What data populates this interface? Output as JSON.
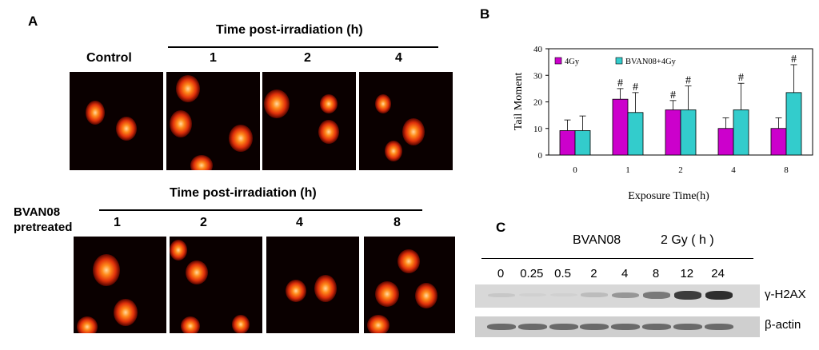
{
  "panelA": {
    "letter": "A",
    "top_header": "Time post-irradiation (h)",
    "top_row_labels": [
      "Control",
      "1",
      "2",
      "4"
    ],
    "bottom_header": "Time post-irradiation (h)",
    "pretreated_label_line1": "BVAN08",
    "pretreated_label_line2": "pretreated",
    "bottom_row_labels": [
      "1",
      "2",
      "4",
      "8"
    ]
  },
  "panelB": {
    "letter": "B",
    "chart_data": {
      "type": "bar",
      "categories": [
        "0",
        "1",
        "2",
        "4",
        "8"
      ],
      "series": [
        {
          "name": "4Gy",
          "color": "#cc00cc",
          "values": [
            9.2,
            21.0,
            17.0,
            10.0,
            10.0
          ],
          "errors": [
            4.0,
            4.0,
            3.5,
            4.0,
            4.0
          ],
          "marks": [
            "",
            "#",
            "#",
            "",
            ""
          ]
        },
        {
          "name": "BVAN08+4Gy",
          "color": "#33cccc",
          "values": [
            9.2,
            16.0,
            17.0,
            17.0,
            23.5
          ],
          "errors": [
            5.5,
            7.5,
            9.0,
            10.0,
            10.5
          ],
          "marks": [
            "",
            "#",
            "#",
            "#",
            "#"
          ]
        }
      ],
      "xlabel": "Exposure Time(h)",
      "ylabel": "Tail Moment",
      "ylim": [
        0,
        40
      ],
      "yticks": [
        "0",
        "10",
        "20",
        "30",
        "40"
      ],
      "grid": false,
      "legend": "top-left"
    }
  },
  "panelC": {
    "letter": "C",
    "treatment": "BVAN08",
    "dose": "2 Gy ( h )",
    "lanes": [
      "0",
      "0.25",
      "0.5",
      "2",
      "4",
      "8",
      "12",
      "24"
    ],
    "row1_label": "γ-H2AX",
    "row2_label": "β-actin",
    "h2ax_intensity": [
      0.15,
      0.05,
      0.05,
      0.25,
      0.5,
      0.65,
      0.9,
      0.95
    ]
  }
}
